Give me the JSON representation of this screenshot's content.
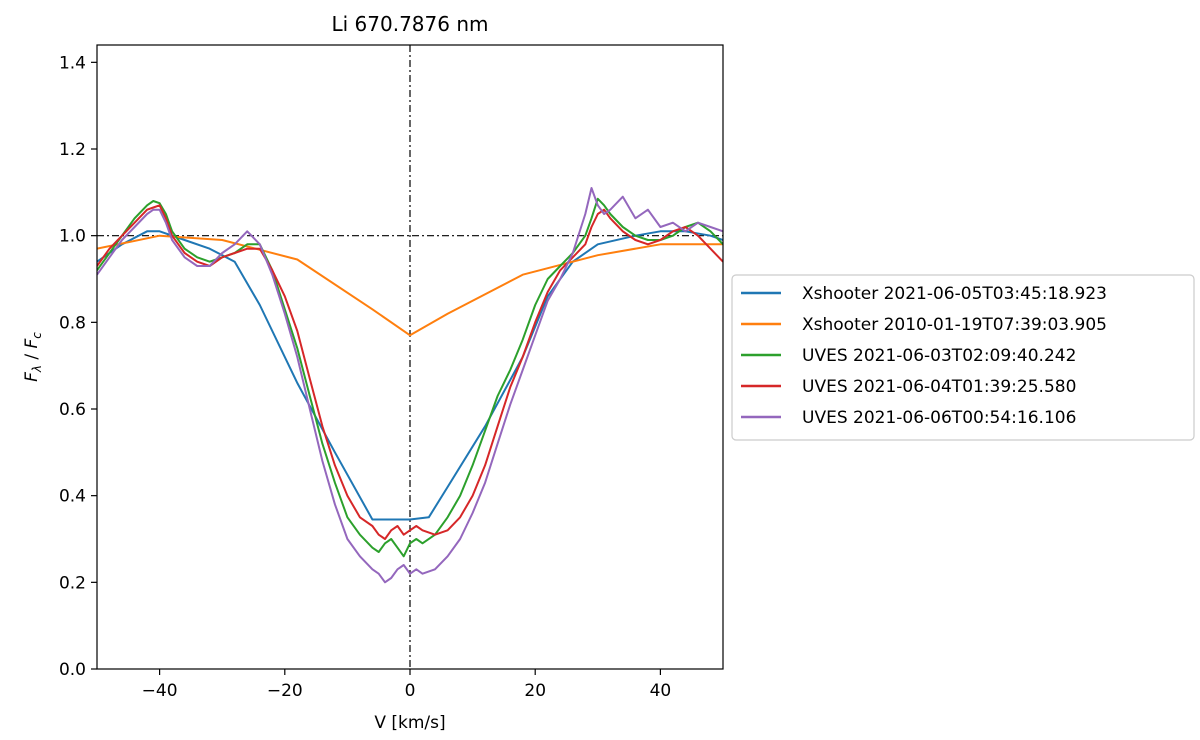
{
  "chart_data": {
    "type": "line",
    "title": "Li 670.7876 nm",
    "xlabel": "V [km/s]",
    "ylabel_main": "F",
    "ylabel_sub1": "λ",
    "ylabel_sep": " / ",
    "ylabel_sub2": "c",
    "xlim": [
      -50,
      50
    ],
    "ylim": [
      0.0,
      1.44
    ],
    "xticks": [
      -40,
      -20,
      0,
      20,
      40
    ],
    "xtick_labels": [
      "−40",
      "−20",
      "0",
      "20",
      "40"
    ],
    "yticks": [
      0.0,
      0.2,
      0.4,
      0.6,
      0.8,
      1.0,
      1.2,
      1.4
    ],
    "ytick_labels": [
      "0.0",
      "0.2",
      "0.4",
      "0.6",
      "0.8",
      "1.0",
      "1.2",
      "1.4"
    ],
    "reference_lines": {
      "hline_y": 1.0,
      "vline_x": 0.0,
      "style": "dash-dot",
      "color": "#000000"
    },
    "grid": false,
    "legend_position": "outside-right",
    "series": [
      {
        "name": "Xshooter 2021-06-05T03:45:18.923",
        "color": "#1f77b4",
        "x": [
          -50,
          -46,
          -42,
          -40,
          -36,
          -32,
          -28,
          -24,
          -18,
          -12,
          -6,
          -2,
          0,
          3,
          6,
          12,
          18,
          22,
          26,
          30,
          36,
          40,
          44,
          48,
          50
        ],
        "y": [
          0.94,
          0.98,
          1.01,
          1.01,
          0.99,
          0.97,
          0.94,
          0.84,
          0.66,
          0.5,
          0.345,
          0.345,
          0.345,
          0.35,
          0.42,
          0.56,
          0.72,
          0.86,
          0.94,
          0.98,
          1.0,
          1.01,
          1.01,
          1.0,
          0.99
        ]
      },
      {
        "name": "Xshooter 2010-01-19T07:39:03.905",
        "color": "#ff7f0e",
        "x": [
          -50,
          -40,
          -30,
          -18,
          -6,
          0,
          6,
          18,
          30,
          40,
          50
        ],
        "y": [
          0.97,
          1.0,
          0.99,
          0.945,
          0.83,
          0.77,
          0.82,
          0.91,
          0.955,
          0.98,
          0.98
        ]
      },
      {
        "name": "UVES 2021-06-03T02:09:40.242",
        "color": "#2ca02c",
        "x": [
          -50,
          -48,
          -46,
          -44,
          -42,
          -41,
          -40,
          -39,
          -38,
          -36,
          -34,
          -32,
          -30,
          -28,
          -26,
          -24,
          -22,
          -20,
          -18,
          -16,
          -14,
          -12,
          -10,
          -8,
          -6,
          -5,
          -4,
          -3,
          -2,
          -1,
          0,
          1,
          2,
          4,
          6,
          8,
          10,
          12,
          14,
          16,
          18,
          20,
          22,
          24,
          26,
          28,
          29,
          30,
          31,
          32,
          34,
          36,
          38,
          40,
          42,
          44,
          46,
          48,
          50
        ],
        "y": [
          0.92,
          0.96,
          1.0,
          1.04,
          1.07,
          1.08,
          1.075,
          1.05,
          1.01,
          0.97,
          0.95,
          0.94,
          0.95,
          0.96,
          0.98,
          0.98,
          0.92,
          0.83,
          0.74,
          0.63,
          0.52,
          0.43,
          0.35,
          0.31,
          0.28,
          0.27,
          0.29,
          0.3,
          0.28,
          0.26,
          0.29,
          0.3,
          0.29,
          0.31,
          0.35,
          0.4,
          0.47,
          0.55,
          0.63,
          0.69,
          0.76,
          0.84,
          0.9,
          0.93,
          0.96,
          1.0,
          1.04,
          1.085,
          1.07,
          1.05,
          1.02,
          1.0,
          0.99,
          0.99,
          1.0,
          1.02,
          1.03,
          1.01,
          0.98
        ]
      },
      {
        "name": "UVES 2021-06-04T01:39:25.580",
        "color": "#d62728",
        "x": [
          -50,
          -48,
          -46,
          -44,
          -42,
          -41,
          -40,
          -39,
          -38,
          -36,
          -34,
          -32,
          -30,
          -28,
          -26,
          -24,
          -22,
          -20,
          -18,
          -16,
          -14,
          -12,
          -10,
          -8,
          -6,
          -5,
          -4,
          -3,
          -2,
          -1,
          0,
          1,
          2,
          4,
          6,
          8,
          10,
          12,
          14,
          16,
          18,
          20,
          22,
          24,
          26,
          28,
          29,
          30,
          31,
          32,
          34,
          36,
          38,
          40,
          42,
          44,
          46,
          48,
          50
        ],
        "y": [
          0.93,
          0.97,
          1.0,
          1.03,
          1.06,
          1.065,
          1.07,
          1.04,
          1.0,
          0.96,
          0.94,
          0.93,
          0.95,
          0.96,
          0.97,
          0.97,
          0.92,
          0.86,
          0.78,
          0.67,
          0.56,
          0.47,
          0.4,
          0.35,
          0.33,
          0.31,
          0.3,
          0.32,
          0.33,
          0.31,
          0.32,
          0.33,
          0.32,
          0.31,
          0.32,
          0.35,
          0.4,
          0.47,
          0.56,
          0.65,
          0.72,
          0.8,
          0.87,
          0.92,
          0.95,
          0.98,
          1.02,
          1.05,
          1.06,
          1.04,
          1.01,
          0.99,
          0.98,
          0.99,
          1.01,
          1.02,
          1.0,
          0.97,
          0.94
        ]
      },
      {
        "name": "UVES 2021-06-06T00:54:16.106",
        "color": "#9467bd",
        "x": [
          -50,
          -48,
          -46,
          -44,
          -42,
          -41,
          -40,
          -39,
          -38,
          -36,
          -34,
          -32,
          -30,
          -28,
          -26,
          -24,
          -22,
          -20,
          -18,
          -16,
          -14,
          -12,
          -10,
          -8,
          -6,
          -5,
          -4,
          -3,
          -2,
          -1,
          0,
          1,
          2,
          4,
          6,
          8,
          10,
          12,
          14,
          16,
          18,
          20,
          22,
          24,
          26,
          28,
          29,
          30,
          31,
          32,
          34,
          36,
          38,
          40,
          42,
          44,
          46,
          48,
          50
        ],
        "y": [
          0.91,
          0.95,
          0.99,
          1.02,
          1.05,
          1.06,
          1.06,
          1.03,
          0.99,
          0.95,
          0.93,
          0.93,
          0.96,
          0.98,
          1.01,
          0.98,
          0.91,
          0.82,
          0.72,
          0.6,
          0.48,
          0.38,
          0.3,
          0.26,
          0.23,
          0.22,
          0.2,
          0.21,
          0.23,
          0.24,
          0.22,
          0.23,
          0.22,
          0.23,
          0.26,
          0.3,
          0.36,
          0.43,
          0.52,
          0.61,
          0.69,
          0.77,
          0.85,
          0.9,
          0.96,
          1.05,
          1.11,
          1.07,
          1.05,
          1.06,
          1.09,
          1.04,
          1.06,
          1.02,
          1.03,
          1.01,
          1.03,
          1.02,
          1.01
        ]
      }
    ]
  }
}
